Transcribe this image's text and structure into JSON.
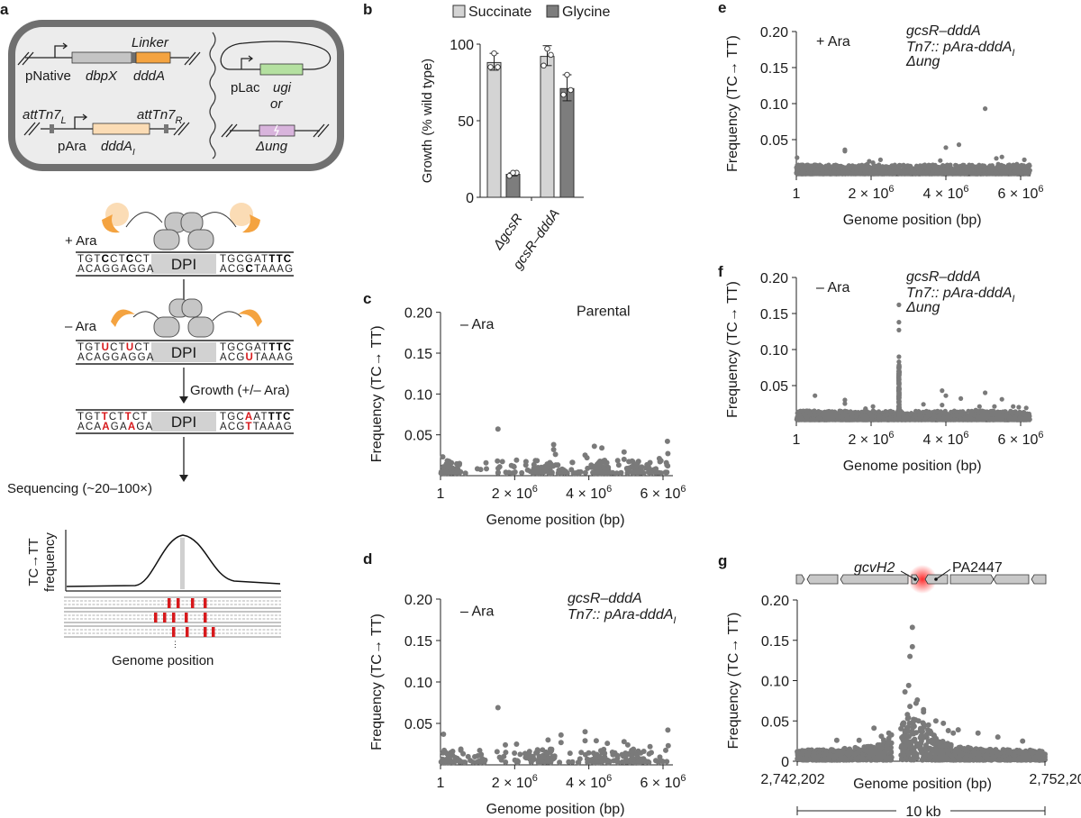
{
  "panel_labels": {
    "a": "a",
    "b": "b",
    "c": "c",
    "d": "d",
    "e": "e",
    "f": "f",
    "g": "g"
  },
  "panel_a": {
    "construct": {
      "linker": "Linker",
      "pnative": "pNative",
      "dbpx": "dbpX",
      "ddda": "dddA",
      "att_l": "attTn7",
      "att_l_sub": "L",
      "att_r": "attTn7",
      "att_r_sub": "R",
      "para": "pAra",
      "dddai": "dddA",
      "dddai_sub": "I",
      "plac": "pLac",
      "ugi": "ugi",
      "or": "or",
      "delta_ung": "Δung"
    },
    "plus_ara": "+ Ara",
    "minus_ara": "– Ara",
    "dpi": "DPI",
    "growth": "Growth (+/– Ara)",
    "sequencing": "Sequencing (~20–100×)",
    "freq_label_1": "TC→TT",
    "freq_label_2": "frequency",
    "genome_position": "Genome position",
    "sequences": [
      {
        "lt": "TGTCCTCCT",
        "lb": "ACAGGAGGA",
        "rt": "TGCGATTTC",
        "rb": "ACGCTAAAG",
        "lt_bold": [
          3,
          6
        ],
        "rt_bold": [
          6,
          7,
          8
        ],
        "rb_bold": [
          3
        ],
        "lt_red": [],
        "lb_red": [],
        "rt_red": [],
        "rb_red": []
      },
      {
        "lt": "TGTUCTUCT",
        "lb": "ACAGGAGGA",
        "rt": "TGCGATTTC",
        "rb": "ACGUTAAAG",
        "lt_bold": [],
        "rt_bold": [
          6,
          7,
          8
        ],
        "rb_bold": [],
        "lt_red": [
          3,
          6
        ],
        "lb_red": [],
        "rt_red": [],
        "rb_red": [
          3
        ]
      },
      {
        "lt": "TGTTCTTCT",
        "lb": "ACAAGAAGA",
        "rt": "TGCAATTTC",
        "rb": "ACGTTAAAG",
        "lt_bold": [],
        "rt_bold": [
          6,
          7,
          8
        ],
        "rb_bold": [],
        "lt_red": [
          3,
          6
        ],
        "lb_red": [
          3,
          6
        ],
        "rt_red": [
          3
        ],
        "rb_red": [
          3
        ]
      }
    ],
    "colors": {
      "ddda": "#f4a340",
      "dddai": "#fbdcb5",
      "ugi": "#b4e0a0",
      "ung": "#d8b4dc",
      "mutation": "#d7191c",
      "cell_wall": "#707070",
      "cell_inner": "#ececec"
    }
  },
  "chart_data": [
    {
      "panel": "b",
      "type": "bar",
      "categories": [
        "ΔgcsR",
        "gcsR–dddA"
      ],
      "series": [
        {
          "name": "Succinate",
          "values": [
            88,
            92
          ],
          "error": [
            [
              83,
              94
            ],
            [
              86,
              99
            ]
          ],
          "points": [
            [
              85,
              85,
              94
            ],
            [
              86,
              93,
              97
            ]
          ],
          "color": "#d4d4d4"
        },
        {
          "name": "Glycine",
          "values": [
            15,
            71
          ],
          "error": [
            [
              14,
              16
            ],
            [
              63,
              80
            ]
          ],
          "points": [
            [
              14,
              16,
              16
            ],
            [
              67,
              70,
              80
            ]
          ],
          "color": "#7d7d7d"
        }
      ],
      "ylabel": "Growth (% wild type)",
      "ylim": [
        0,
        100
      ],
      "yticks": [
        "0",
        "50",
        "100"
      ],
      "legend": "top"
    },
    {
      "panel": "c",
      "type": "scatter",
      "xlabel": "Genome position (bp)",
      "ylabel": "Frequency (TC→ TT)",
      "xlim": [
        1,
        6300000
      ],
      "ylim": [
        0,
        0.2
      ],
      "xticks": [
        "1",
        "2 × 10",
        "4 × 10",
        "6 × 10"
      ],
      "xtick_exp": "6",
      "yticks": [
        "0.05",
        "0.10",
        "0.15",
        "0.20"
      ],
      "condition": "– Ara",
      "strain": [
        "Parental"
      ],
      "points": [
        [
          60000,
          0.023
        ],
        [
          1550000,
          0.057
        ],
        [
          2050000,
          0.019
        ],
        [
          2300000,
          0.013
        ],
        [
          2950000,
          0.016
        ],
        [
          3050000,
          0.038
        ],
        [
          3050000,
          0.032
        ],
        [
          3100000,
          0.026
        ],
        [
          3900000,
          0.025
        ],
        [
          3950000,
          0.022
        ],
        [
          4150000,
          0.036
        ],
        [
          4350000,
          0.034
        ],
        [
          4450000,
          0.016
        ],
        [
          4950000,
          0.029
        ],
        [
          4950000,
          0.02
        ],
        [
          5650000,
          0.016
        ],
        [
          5900000,
          0.021
        ],
        [
          6120000,
          0.042
        ],
        [
          6130000,
          0.027
        ]
      ]
    },
    {
      "panel": "d",
      "type": "scatter",
      "xlabel": "Genome position (bp)",
      "ylabel": "Frequency (TC→ TT)",
      "xlim": [
        1,
        6300000
      ],
      "ylim": [
        0,
        0.2
      ],
      "xticks": [
        "1",
        "2 × 10",
        "4 × 10",
        "6 × 10"
      ],
      "xtick_exp": "6",
      "yticks": [
        "0.05",
        "0.10",
        "0.15",
        "0.20"
      ],
      "condition": "– Ara",
      "strain": [
        "gcsR–dddA",
        "Tn7:: pAra-dddA",
        "I"
      ],
      "points": [
        [
          80000,
          0.037
        ],
        [
          550000,
          0.019
        ],
        [
          1550000,
          0.069
        ],
        [
          1750000,
          0.024
        ],
        [
          2050000,
          0.025
        ],
        [
          2400000,
          0.012
        ],
        [
          2900000,
          0.03
        ],
        [
          3250000,
          0.036
        ],
        [
          3250000,
          0.027
        ],
        [
          3900000,
          0.04
        ],
        [
          3900000,
          0.029
        ],
        [
          4200000,
          0.029
        ],
        [
          4500000,
          0.026
        ],
        [
          4950000,
          0.028
        ],
        [
          5050000,
          0.024
        ],
        [
          5650000,
          0.022
        ],
        [
          6130000,
          0.042
        ],
        [
          6140000,
          0.023
        ]
      ]
    },
    {
      "panel": "e",
      "type": "scatter",
      "xlabel": "Genome position (bp)",
      "ylabel": "Frequency (TC→ TT)",
      "xlim": [
        1,
        6300000
      ],
      "ylim": [
        0,
        0.2
      ],
      "xticks": [
        "1",
        "2 × 10",
        "4 × 10",
        "6 × 10"
      ],
      "xtick_exp": "6",
      "yticks": [
        "0.05",
        "0.10",
        "0.15",
        "0.20"
      ],
      "condition": "+ Ara",
      "strain": [
        "gcsR–dddA",
        "Tn7:: pAra-dddA",
        "I",
        "Δung"
      ],
      "points": [
        [
          20000,
          0.025
        ],
        [
          500000,
          0.015
        ],
        [
          1300000,
          0.036
        ],
        [
          1300000,
          0.034
        ],
        [
          1900000,
          0.016
        ],
        [
          1950000,
          0.02
        ],
        [
          2050000,
          0.018
        ],
        [
          2250000,
          0.022
        ],
        [
          3850000,
          0.021
        ],
        [
          4000000,
          0.039
        ],
        [
          4350000,
          0.043
        ],
        [
          5050000,
          0.093
        ],
        [
          5350000,
          0.024
        ],
        [
          5400000,
          0.016
        ],
        [
          5500000,
          0.026
        ],
        [
          5700000,
          0.015
        ],
        [
          5900000,
          0.016
        ],
        [
          6100000,
          0.022
        ],
        [
          6200000,
          0.014
        ]
      ]
    },
    {
      "panel": "f",
      "type": "scatter",
      "xlabel": "Genome position (bp)",
      "ylabel": "Frequency (TC→ TT)",
      "xlim": [
        1,
        6300000
      ],
      "ylim": [
        0,
        0.2
      ],
      "xticks": [
        "1",
        "2 × 10",
        "4 × 10",
        "6 × 10"
      ],
      "xtick_exp": "6",
      "yticks": [
        "0.05",
        "0.10",
        "0.15",
        "0.20"
      ],
      "condition": "– Ara",
      "strain": [
        "gcsR–dddA",
        "Tn7:: pAra-dddA",
        "I",
        "Δung"
      ],
      "peak": {
        "x": 2745000,
        "values": [
          0.083,
          0.09,
          0.127,
          0.138,
          0.162
        ],
        "dense_max": 0.075
      },
      "points": [
        [
          100000,
          0.014
        ],
        [
          500000,
          0.036
        ],
        [
          1300000,
          0.03
        ],
        [
          1300000,
          0.025
        ],
        [
          1450000,
          0.014
        ],
        [
          1850000,
          0.018
        ],
        [
          2050000,
          0.021
        ],
        [
          3400000,
          0.024
        ],
        [
          3750000,
          0.014
        ],
        [
          3900000,
          0.043
        ],
        [
          3900000,
          0.023
        ],
        [
          4000000,
          0.036
        ],
        [
          4400000,
          0.032
        ],
        [
          4800000,
          0.016
        ],
        [
          4900000,
          0.021
        ],
        [
          5050000,
          0.04
        ],
        [
          5300000,
          0.021
        ],
        [
          5500000,
          0.031
        ],
        [
          5800000,
          0.021
        ],
        [
          5950000,
          0.02
        ],
        [
          6150000,
          0.019
        ]
      ]
    },
    {
      "panel": "g",
      "type": "scatter",
      "xlabel": "Genome position (bp)",
      "ylabel": "Frequency (TC→ TT)",
      "xlim": [
        2742202,
        2752202
      ],
      "ylim": [
        0,
        0.2
      ],
      "xticks": [
        "2,742,202",
        "2,752,202"
      ],
      "yticks": [
        "0",
        "0.05",
        "0.10",
        "0.15",
        "0.20"
      ],
      "genes": [
        "gcvH2",
        "PA2447"
      ],
      "scale_bar": "10 kb",
      "points": [
        [
          2746550,
          0.086
        ],
        [
          2746700,
          0.094
        ],
        [
          2746750,
          0.13
        ],
        [
          2746850,
          0.142
        ],
        [
          2746850,
          0.166
        ],
        [
          2746650,
          0.058
        ],
        [
          2746750,
          0.068
        ],
        [
          2747000,
          0.072
        ],
        [
          2747050,
          0.076
        ],
        [
          2747300,
          0.064
        ],
        [
          2747300,
          0.061
        ],
        [
          2746900,
          0.052
        ],
        [
          2747100,
          0.05
        ],
        [
          2747500,
          0.045
        ],
        [
          2747800,
          0.05
        ],
        [
          2748100,
          0.047
        ],
        [
          2748300,
          0.038
        ],
        [
          2748500,
          0.035
        ],
        [
          2748700,
          0.039
        ],
        [
          2749500,
          0.035
        ],
        [
          2750300,
          0.03
        ],
        [
          2745300,
          0.041
        ],
        [
          2745600,
          0.031
        ],
        [
          2744700,
          0.026
        ],
        [
          2743800,
          0.026
        ],
        [
          2751300,
          0.025
        ],
        [
          2745900,
          0.035
        ]
      ]
    }
  ]
}
